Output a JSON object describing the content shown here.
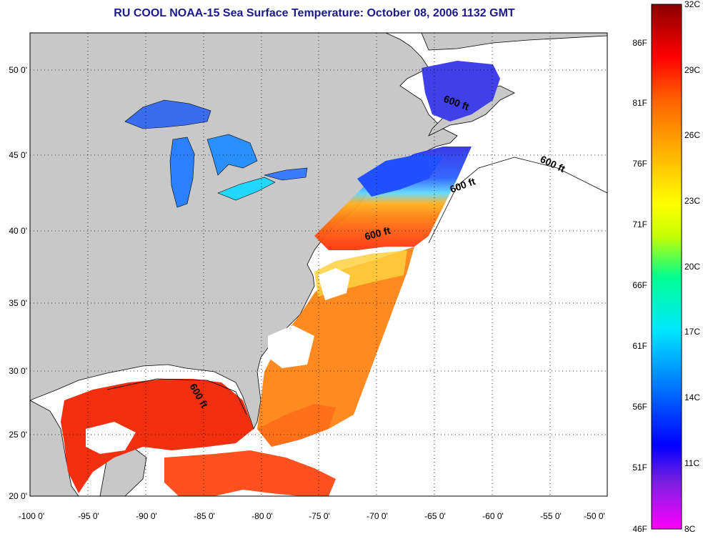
{
  "title": "RU COOL  NOAA-15  Sea Surface Temperature:  October 08, 2006 1132 GMT",
  "map": {
    "lon_range": [
      -100,
      -50
    ],
    "lat_range": [
      20,
      52.5
    ],
    "lon_ticks": [
      "-100 0'",
      "-95 0'",
      "-90 0'",
      "-85 0'",
      "-80 0'",
      "-75 0'",
      "-70 0'",
      "-65 0'",
      "-60 0'",
      "-55 0'",
      "-50 0'"
    ],
    "lat_ticks": [
      "50 0'",
      "45 0'",
      "40 0'",
      "35 0'",
      "30 0'",
      "25 0'",
      "20 0'"
    ],
    "grid": "dotted",
    "land_color": "#c8c8c8",
    "no_data_color": "#ffffff",
    "contour_labels": [
      "600 ft",
      "600 ft",
      "600 ft",
      "600 ft",
      "600 ft"
    ]
  },
  "colorbar": {
    "range_c": [
      8,
      32
    ],
    "celsius_labels": [
      "32C",
      "29C",
      "26C",
      "23C",
      "20C",
      "17C",
      "14C",
      "11C",
      "8C"
    ],
    "fahrenheit_labels": [
      "86F",
      "81F",
      "76F",
      "71F",
      "66F",
      "61F",
      "56F",
      "51F",
      "46F"
    ],
    "colors": [
      "#ff00ff",
      "#7a20e0",
      "#0000ff",
      "#0080ff",
      "#00e8ff",
      "#00ff90",
      "#c8ff00",
      "#ffff00",
      "#ffb000",
      "#ff6000",
      "#ff0000",
      "#8b0000"
    ]
  }
}
